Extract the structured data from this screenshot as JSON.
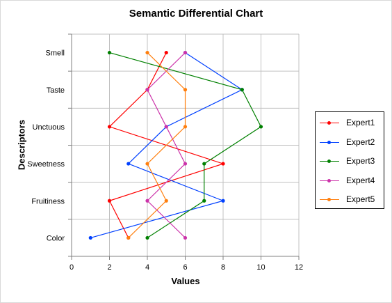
{
  "chart_data": {
    "type": "line",
    "title": "Semantic Differential Chart",
    "xlabel": "Values",
    "ylabel": "Descriptors",
    "xlim": [
      0,
      12
    ],
    "x_ticks": [
      "0",
      "2",
      "4",
      "6",
      "8",
      "10",
      "12"
    ],
    "categories": [
      "Color",
      "Fruitiness",
      "Sweetness",
      "Unctuous",
      "Taste",
      "Smell"
    ],
    "grid": true,
    "legend_position": "right",
    "series": [
      {
        "name": "Expert1",
        "color": "#ff0000",
        "values": [
          3,
          2,
          8,
          2,
          4,
          5
        ]
      },
      {
        "name": "Expert2",
        "color": "#0040ff",
        "values": [
          1,
          8,
          3,
          5,
          9,
          6
        ]
      },
      {
        "name": "Expert3",
        "color": "#008000",
        "values": [
          4,
          7,
          7,
          10,
          9,
          2
        ]
      },
      {
        "name": "Expert4",
        "color": "#cc33aa",
        "values": [
          6,
          4,
          6,
          5,
          4,
          6
        ]
      },
      {
        "name": "Expert5",
        "color": "#ff7f0e",
        "values": [
          3,
          5,
          4,
          6,
          6,
          4
        ]
      }
    ]
  }
}
